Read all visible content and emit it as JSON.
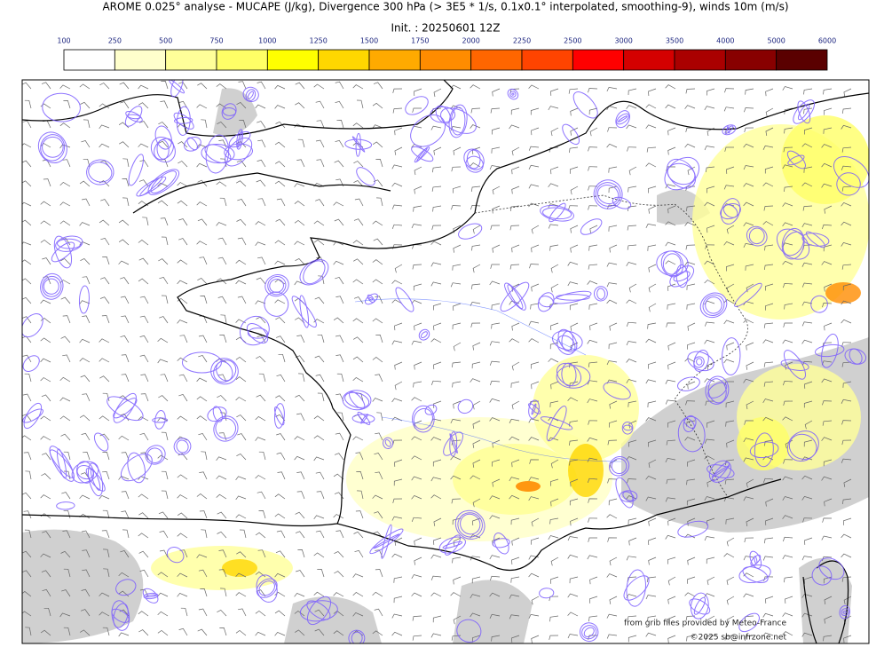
{
  "header": {
    "title": "AROME 0.025° analyse - MUCAPE (J/kg), Divergence 300 hPa (> 3E5 * 1/s, 0.1x0.1° interpolated, smoothing-9), winds 10m (m/s)",
    "init": "Init. : 20250601 12Z"
  },
  "legend": {
    "levels": [
      100,
      250,
      500,
      750,
      1000,
      1250,
      1500,
      1750,
      2000,
      2250,
      2500,
      3000,
      3500,
      4000,
      5000,
      6000
    ],
    "colors": [
      "#ffffff",
      "#ffffcc",
      "#ffff99",
      "#ffff66",
      "#ffff00",
      "#ffd700",
      "#ffaa00",
      "#ff8c00",
      "#ff6600",
      "#ff4400",
      "#ff0000",
      "#d40000",
      "#aa0000",
      "#880000",
      "#5a0000"
    ]
  },
  "credits": {
    "source": "from grib files provided by Meteo-France",
    "copyright": "©2025 sb@infrzone.net"
  }
}
